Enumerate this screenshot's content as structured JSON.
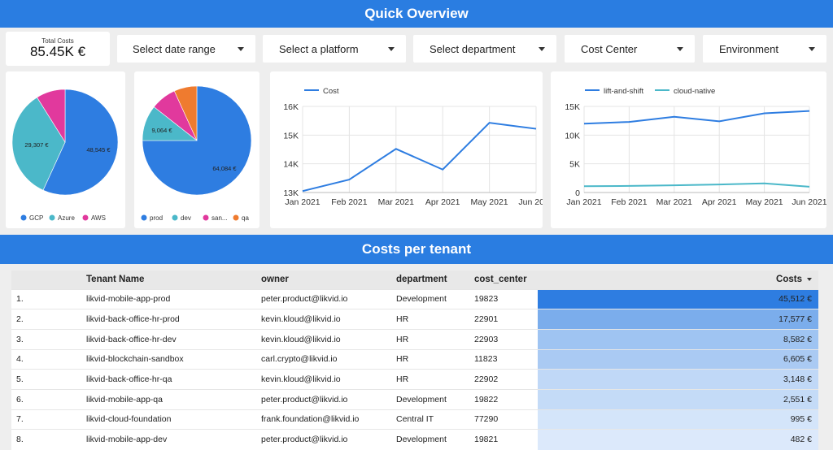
{
  "header": {
    "title": "Quick Overview"
  },
  "kpi": {
    "label": "Total Costs",
    "value": "85.45K €"
  },
  "filters": [
    {
      "label": "Select date range"
    },
    {
      "label": "Select a platform"
    },
    {
      "label": "Select department"
    },
    {
      "label": "Cost Center"
    },
    {
      "label": "Environment"
    }
  ],
  "chart_data": [
    {
      "type": "pie",
      "categories": [
        "GCP",
        "Azure",
        "AWS"
      ],
      "values": [
        48545,
        29307,
        7600
      ],
      "data_labels": [
        "48,545 €",
        "29,307 €",
        ""
      ],
      "colors": [
        "#2e7de1",
        "#4bb8c9",
        "#e1399d"
      ],
      "legend": "bottom"
    },
    {
      "type": "pie",
      "categories": [
        "prod",
        "dev",
        "san...",
        "qa"
      ],
      "values": [
        64084,
        9064,
        6500,
        5800
      ],
      "data_labels": [
        "64,084 €",
        "9,064 €",
        "",
        ""
      ],
      "colors": [
        "#2e7de1",
        "#4bb8c9",
        "#e1399d",
        "#ef7b2f"
      ],
      "legend": "bottom"
    },
    {
      "type": "line",
      "x": [
        "Jan 2021",
        "Feb 2021",
        "Mar 2021",
        "Apr 2021",
        "May 2021",
        "Jun 2021"
      ],
      "series": [
        {
          "name": "Cost",
          "values": [
            13050,
            13450,
            14520,
            13800,
            15430,
            15220
          ],
          "color": "#2e7de1"
        }
      ],
      "y_ticks": [
        "13K",
        "14K",
        "15K",
        "16K"
      ],
      "ylim": [
        13000,
        16000
      ],
      "legend": "top-left",
      "grid": true
    },
    {
      "type": "line",
      "x": [
        "Jan 2021",
        "Feb 2021",
        "Mar 2021",
        "Apr 2021",
        "May 2021",
        "Jun 2021"
      ],
      "series": [
        {
          "name": "lift-and-shift",
          "values": [
            12000,
            12300,
            13200,
            12400,
            13800,
            14200
          ],
          "color": "#2e7de1"
        },
        {
          "name": "cloud-native",
          "values": [
            1100,
            1150,
            1250,
            1400,
            1600,
            1000
          ],
          "color": "#4bb8c9"
        }
      ],
      "y_ticks": [
        "0",
        "5K",
        "10K",
        "15K"
      ],
      "ylim": [
        0,
        15000
      ],
      "legend": "top-left",
      "grid": true
    }
  ],
  "section": {
    "title": "Costs per tenant"
  },
  "table": {
    "columns": [
      "",
      "Tenant Name",
      "owner",
      "department",
      "cost_center",
      "Costs"
    ],
    "max_cost": 45512,
    "rows": [
      {
        "index": "1.",
        "tenant": "likvid-mobile-app-prod",
        "owner": "peter.product@likvid.io",
        "department": "Development",
        "cost_center": "19823",
        "costs": "45,512 €",
        "cost_value": 45512
      },
      {
        "index": "2.",
        "tenant": "likvid-back-office-hr-prod",
        "owner": "kevin.kloud@likvid.io",
        "department": "HR",
        "cost_center": "22901",
        "costs": "17,577 €",
        "cost_value": 17577
      },
      {
        "index": "3.",
        "tenant": "likvid-back-office-hr-dev",
        "owner": "kevin.kloud@likvid.io",
        "department": "HR",
        "cost_center": "22903",
        "costs": "8,582 €",
        "cost_value": 8582
      },
      {
        "index": "4.",
        "tenant": "likvid-blockchain-sandbox",
        "owner": "carl.crypto@likvid.io",
        "department": "HR",
        "cost_center": "11823",
        "costs": "6,605 €",
        "cost_value": 6605
      },
      {
        "index": "5.",
        "tenant": "likvid-back-office-hr-qa",
        "owner": "kevin.kloud@likvid.io",
        "department": "HR",
        "cost_center": "22902",
        "costs": "3,148 €",
        "cost_value": 3148
      },
      {
        "index": "6.",
        "tenant": "likvid-mobile-app-qa",
        "owner": "peter.product@likvid.io",
        "department": "Development",
        "cost_center": "19822",
        "costs": "2,551 €",
        "cost_value": 2551
      },
      {
        "index": "7.",
        "tenant": "likvid-cloud-foundation",
        "owner": "frank.foundation@likvid.io",
        "department": "Central IT",
        "cost_center": "77290",
        "costs": "995 €",
        "cost_value": 995
      },
      {
        "index": "8.",
        "tenant": "likvid-mobile-app-dev",
        "owner": "peter.product@likvid.io",
        "department": "Development",
        "cost_center": "19821",
        "costs": "482 €",
        "cost_value": 482
      }
    ]
  }
}
